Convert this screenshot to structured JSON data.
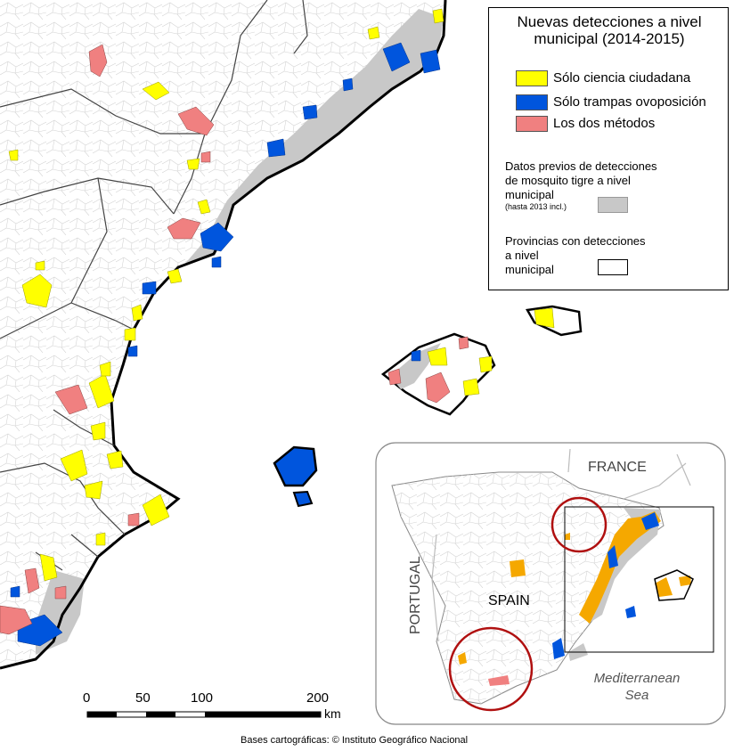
{
  "legend": {
    "title_line1": "Nuevas detecciones a nivel",
    "title_line2": "municipal (2014-2015)",
    "items": [
      {
        "label": "Sólo ciencia ciudadana",
        "color": "#ffff00"
      },
      {
        "label": "Sólo trampas ovoposición",
        "color": "#0055dd"
      },
      {
        "label": "Los dos métodos",
        "color": "#f08080"
      }
    ],
    "previous_line1": "Datos previos de detecciones",
    "previous_line2": "de mosquito tigre a nivel",
    "previous_line3": "municipal",
    "previous_note": "(hasta 2013 incl.)",
    "previous_color": "#c8c8c8",
    "provinces_line1": "Provincias con detecciones",
    "provinces_line2": "a nivel",
    "provinces_line3": "municipal"
  },
  "scale": {
    "ticks": [
      "0",
      "50",
      "100",
      "200"
    ],
    "unit": "km"
  },
  "inset": {
    "france": "FRANCE",
    "spain": "SPAIN",
    "portugal": "PORTUGAL",
    "sea_line1": "Mediterranean",
    "sea_line2": "Sea"
  },
  "credit": "Bases cartográficas: © Instituto Geográfico Nacional"
}
